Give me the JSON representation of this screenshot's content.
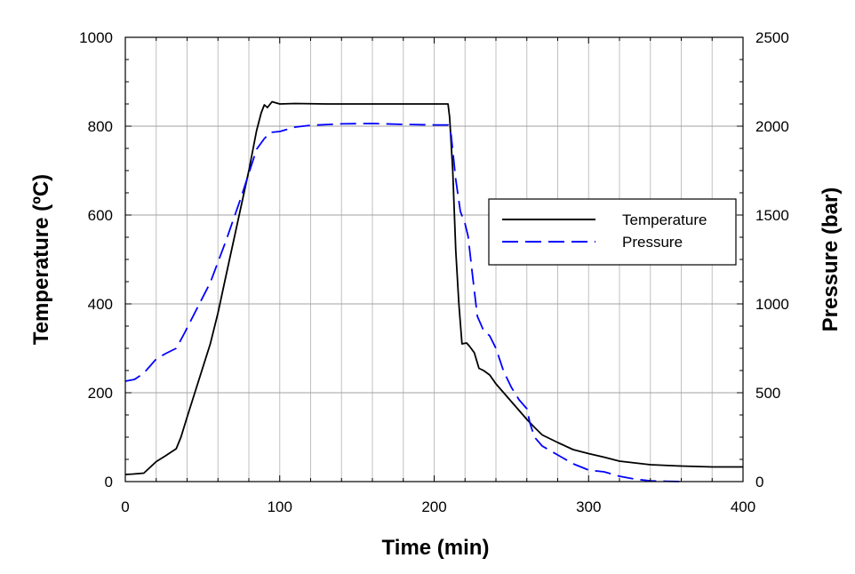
{
  "chart_data": {
    "type": "line",
    "xlabel": "Time (min)",
    "ylabel_left": "Temperature (ºC)",
    "ylabel_right": "Pressure (bar)",
    "xlim": [
      0,
      400
    ],
    "ylim_left": [
      0,
      1000
    ],
    "ylim_right": [
      0,
      2500
    ],
    "x_ticks": [
      0,
      100,
      200,
      300,
      400
    ],
    "y_left_ticks": [
      0,
      200,
      400,
      600,
      800,
      1000
    ],
    "y_right_ticks": [
      0,
      500,
      1000,
      1500,
      2000,
      2500
    ],
    "grid": true,
    "legend_position": "right",
    "series": [
      {
        "name": "Temperature",
        "axis": "left",
        "color": "#000000",
        "style": "solid",
        "points": [
          [
            0,
            16
          ],
          [
            5,
            17
          ],
          [
            12,
            19
          ],
          [
            16,
            32
          ],
          [
            20,
            45
          ],
          [
            26,
            58
          ],
          [
            33,
            74
          ],
          [
            36,
            100
          ],
          [
            40,
            145
          ],
          [
            45,
            200
          ],
          [
            50,
            255
          ],
          [
            55,
            310
          ],
          [
            60,
            380
          ],
          [
            65,
            460
          ],
          [
            70,
            540
          ],
          [
            75,
            620
          ],
          [
            80,
            700
          ],
          [
            85,
            790
          ],
          [
            88,
            830
          ],
          [
            90,
            848
          ],
          [
            92,
            842
          ],
          [
            95,
            855
          ],
          [
            98,
            852
          ],
          [
            100,
            850
          ],
          [
            110,
            851
          ],
          [
            130,
            850
          ],
          [
            160,
            850
          ],
          [
            190,
            850
          ],
          [
            209,
            850
          ],
          [
            210,
            820
          ],
          [
            212,
            700
          ],
          [
            214,
            520
          ],
          [
            216,
            400
          ],
          [
            218,
            310
          ],
          [
            221,
            312
          ],
          [
            223,
            304
          ],
          [
            226,
            290
          ],
          [
            229,
            255
          ],
          [
            232,
            250
          ],
          [
            236,
            240
          ],
          [
            240,
            220
          ],
          [
            245,
            200
          ],
          [
            250,
            180
          ],
          [
            255,
            160
          ],
          [
            260,
            140
          ],
          [
            265,
            122
          ],
          [
            270,
            105
          ],
          [
            280,
            88
          ],
          [
            290,
            72
          ],
          [
            300,
            63
          ],
          [
            310,
            55
          ],
          [
            320,
            46
          ],
          [
            340,
            38
          ],
          [
            360,
            35
          ],
          [
            380,
            33
          ],
          [
            400,
            33
          ]
        ]
      },
      {
        "name": "Pressure",
        "axis": "right",
        "color": "#0000ff",
        "style": "dashed",
        "points": [
          [
            0,
            565
          ],
          [
            6,
            575
          ],
          [
            12,
            610
          ],
          [
            16,
            650
          ],
          [
            20,
            690
          ],
          [
            26,
            720
          ],
          [
            33,
            750
          ],
          [
            38,
            830
          ],
          [
            45,
            950
          ],
          [
            55,
            1120
          ],
          [
            65,
            1350
          ],
          [
            75,
            1600
          ],
          [
            85,
            1870
          ],
          [
            90,
            1930
          ],
          [
            94,
            1965
          ],
          [
            100,
            1970
          ],
          [
            104,
            1980
          ],
          [
            110,
            1995
          ],
          [
            120,
            2005
          ],
          [
            140,
            2013
          ],
          [
            160,
            2015
          ],
          [
            180,
            2010
          ],
          [
            200,
            2007
          ],
          [
            209,
            2007
          ],
          [
            211,
            1950
          ],
          [
            214,
            1700
          ],
          [
            217,
            1520
          ],
          [
            220,
            1450
          ],
          [
            222,
            1380
          ],
          [
            225,
            1150
          ],
          [
            228,
            930
          ],
          [
            232,
            850
          ],
          [
            236,
            820
          ],
          [
            240,
            750
          ],
          [
            245,
            620
          ],
          [
            250,
            530
          ],
          [
            255,
            460
          ],
          [
            260,
            410
          ],
          [
            262,
            330
          ],
          [
            265,
            250
          ],
          [
            270,
            200
          ],
          [
            280,
            150
          ],
          [
            290,
            100
          ],
          [
            300,
            65
          ],
          [
            310,
            55
          ],
          [
            320,
            30
          ],
          [
            330,
            14
          ],
          [
            340,
            4
          ],
          [
            350,
            2
          ],
          [
            362,
            0
          ]
        ]
      }
    ]
  }
}
